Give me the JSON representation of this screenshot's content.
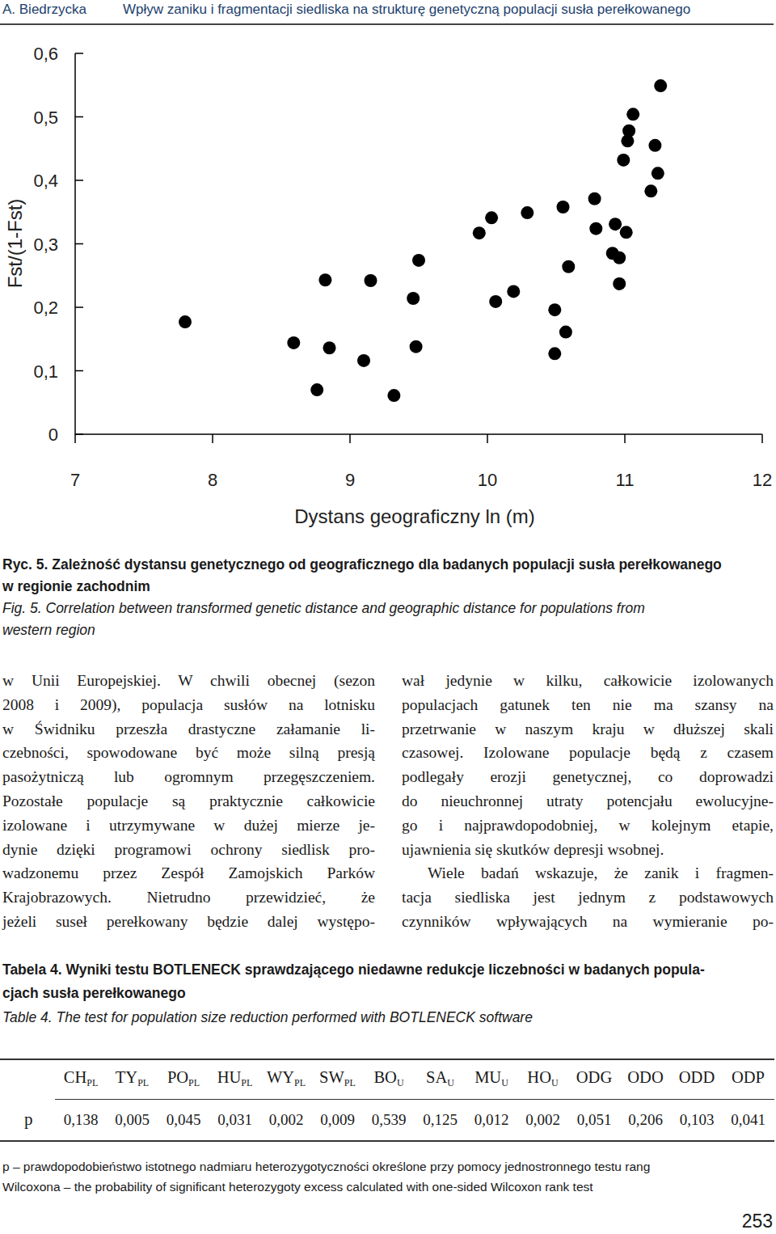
{
  "header": {
    "author": "A. Biedrzycka",
    "title": "Wpływ zaniku i fragmentacji siedliska na strukturę genetyczną populacji susła perełkowanego"
  },
  "chart_data": {
    "type": "scatter",
    "x_label": "Dystans geograficzny  ln (m)",
    "y_label": "Fst/(1-Fst)",
    "xlim": [
      7,
      12
    ],
    "ylim": [
      0,
      0.6
    ],
    "xticks": [
      7,
      8,
      9,
      10,
      11,
      12
    ],
    "yticks": [
      0,
      {
        "value": 0.1,
        "label": "0,1"
      },
      {
        "value": 0.2,
        "label": "0,2"
      },
      {
        "value": 0.3,
        "label": "0,3"
      },
      {
        "value": 0.4,
        "label": "0,4"
      },
      {
        "value": 0.5,
        "label": "0,5"
      },
      {
        "value": 0.6,
        "label": "0,6"
      }
    ],
    "color": "#000000",
    "marker": "circle",
    "x": [
      7.8,
      8.59,
      8.76,
      8.82,
      8.85,
      9.1,
      9.15,
      9.32,
      9.46,
      9.48,
      9.5,
      9.94,
      10.03,
      10.06,
      10.19,
      10.29,
      10.49,
      10.49,
      10.55,
      10.57,
      10.59,
      10.78,
      10.79,
      10.91,
      10.93,
      10.96,
      10.96,
      11.01,
      10.99,
      11.02,
      11.03,
      11.06,
      11.19,
      11.22,
      11.24,
      11.26
    ],
    "values": [
      0.177,
      0.144,
      0.07,
      0.243,
      0.136,
      0.116,
      0.242,
      0.061,
      0.214,
      0.138,
      0.274,
      0.317,
      0.341,
      0.209,
      0.225,
      0.349,
      0.196,
      0.127,
      0.358,
      0.161,
      0.264,
      0.371,
      0.324,
      0.285,
      0.331,
      0.278,
      0.237,
      0.318,
      0.432,
      0.462,
      0.478,
      0.504,
      0.383,
      0.455,
      0.411,
      0.549
    ]
  },
  "figure_caption": {
    "pl": [
      "Ryc. 5. Zależność dystansu genetycznego od geograficznego dla badanych populacji susła perełkowanego",
      "w regionie zachodnim"
    ],
    "en": [
      "Fig. 5. Correlation between transformed genetic distance and geographic distance for populations from",
      "western region"
    ]
  },
  "body": {
    "left_column": [
      [
        "w Unii Europejskiej. W chwili obecnej (sezon",
        "2008 i 2009), populacja susłów na lotnisku",
        "w Świdniku przeszła drastyczne załamanie li-",
        "czebności, spowodowane być może silną presją",
        "pasożytniczą lub ogromnym przegęszczeniem.",
        "Pozostałe populacje są praktycznie całkowicie",
        "izolowane i utrzymywane w dużej mierze je-",
        "dynie dzięki programowi ochrony siedlisk pro-",
        "wadzonemu przez Zespół Zamojskich Parków",
        "Krajobrazowych. Nietrudno przewidzieć, że",
        "jeżeli suseł perełkowany będzie dalej występo-"
      ]
    ],
    "right_column": [
      [
        "wał jedynie w kilku, całkowicie izolowanych",
        "populacjach gatunek ten nie ma szansy na",
        "przetrwanie w naszym kraju w dłuższej skali",
        "czasowej. Izolowane populacje będą z czasem",
        "podlegały erozji genetycznej, co doprowadzi",
        "do nieuchronnej utraty potencjału ewolucyjne-",
        "go i najprawdopodobniej, w kolejnym etapie,",
        "ujawnienia się skutków depresji wsobnej."
      ],
      [
        "Wiele badań wskazuje, że zanik i fragmen-",
        "tacja siedliska jest jednym z podstawowych",
        "czynników wpływających na wymieranie po-"
      ]
    ]
  },
  "table_caption": {
    "pl": [
      "Tabela 4. Wyniki testu BOTLENECK sprawdzającego niedawne redukcje liczebności w badanych popula-",
      "cjach susła perełkowanego"
    ],
    "en": [
      "Table 4. The test for population size reduction performed with BOTLENECK software"
    ]
  },
  "table": {
    "row_label": "p",
    "columns": [
      {
        "name": "CH",
        "sub": "PL"
      },
      {
        "name": "TY",
        "sub": "PL"
      },
      {
        "name": "PO",
        "sub": "PL"
      },
      {
        "name": "HU",
        "sub": "PL"
      },
      {
        "name": "WY",
        "sub": "PL"
      },
      {
        "name": "SW",
        "sub": "PL"
      },
      {
        "name": "BO",
        "sub": "U"
      },
      {
        "name": "SA",
        "sub": "U"
      },
      {
        "name": "MU",
        "sub": "U"
      },
      {
        "name": "HO",
        "sub": "U"
      },
      {
        "name": "ODG"
      },
      {
        "name": "ODO"
      },
      {
        "name": "ODD"
      },
      {
        "name": "ODP"
      }
    ],
    "values": [
      "0,138",
      "0,005",
      "0,045",
      "0,031",
      "0,002",
      "0,009",
      "0,539",
      "0,125",
      "0,012",
      "0,002",
      "0,051",
      "0,206",
      "0,103",
      "0,041"
    ]
  },
  "footnote": [
    "p – prawdopodobieństwo istotnego nadmiaru heterozygotyczności określone przy pomocy jednostronnego testu rang",
    "Wilcoxona – the probability of significant heterozygoty excess calculated with one-sided Wilcoxon rank test"
  ],
  "page_number": "253"
}
